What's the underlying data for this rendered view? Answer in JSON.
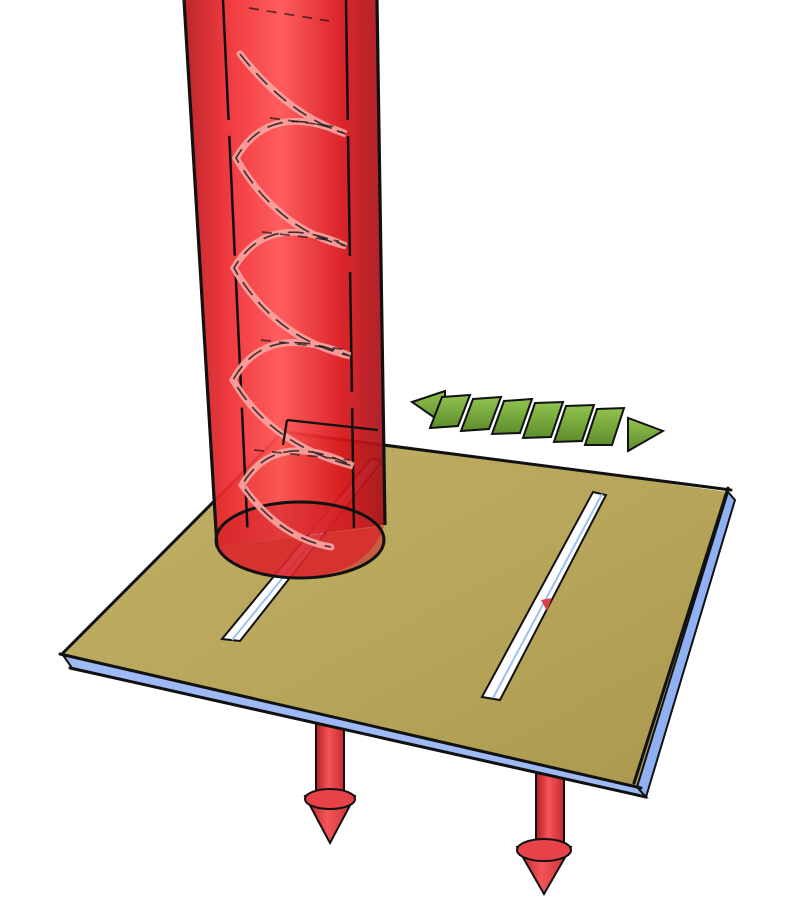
{
  "diagram": {
    "colors": {
      "background": "#ffffff",
      "cylinder_red": "#e9272c",
      "cylinder_dark": "#a9141a",
      "cylinder_light": "#ff5a5a",
      "helix": "#f7a3a0",
      "plate_top": "#b8a658",
      "plate_edge": "#9fb9f5",
      "slot": "#ffffff",
      "arrow_green": "#73a53b",
      "arrow_red": "#e84249",
      "outline": "#111111"
    },
    "parts": [
      {
        "id": "helical-waveguide",
        "icon": "red-tube-with-helix"
      },
      {
        "id": "ground-plate",
        "icon": "beige-plate"
      },
      {
        "id": "left-slot",
        "icon": "narrow-slot"
      },
      {
        "id": "right-slot",
        "icon": "narrow-slot"
      },
      {
        "id": "polarization-arrow",
        "icon": "green-double-arrow"
      },
      {
        "id": "downward-arrows",
        "icon": "red-arrows"
      }
    ]
  }
}
